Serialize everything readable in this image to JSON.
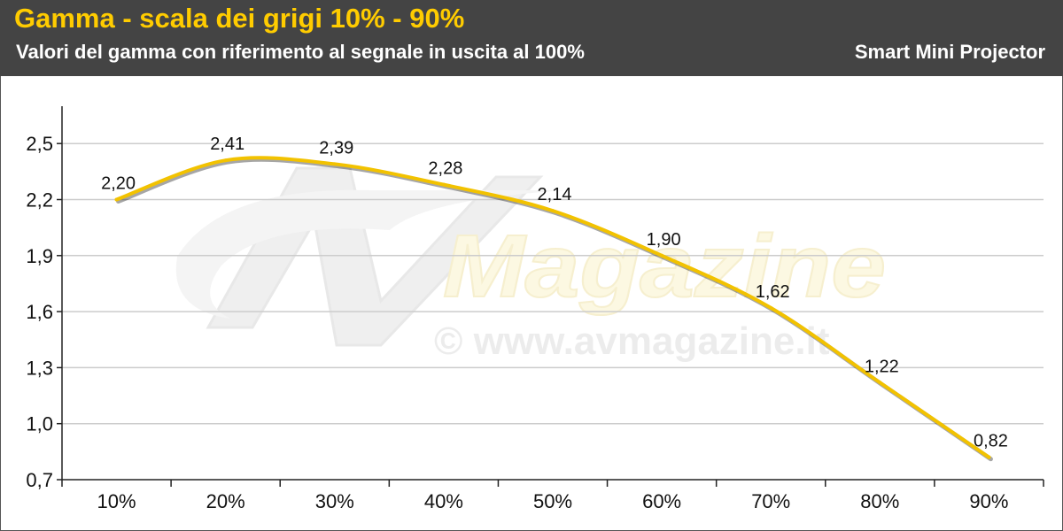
{
  "header": {
    "title": "Gamma - scala dei grigi 10% - 90%",
    "subtitle": "Valori del gamma con riferimento al segnale in uscita al 100%",
    "product": "Smart Mini Projector"
  },
  "watermark": {
    "logo_text": "Magazine",
    "url_text": "© www.avmagazine.it"
  },
  "colors": {
    "title": "#ffcc00",
    "line": "#f2c200",
    "background_header": "#444444",
    "grid": "#cccccc"
  },
  "chart_data": {
    "type": "line",
    "categories": [
      "10%",
      "20%",
      "30%",
      "40%",
      "50%",
      "60%",
      "70%",
      "80%",
      "90%"
    ],
    "series": [
      {
        "values": [
          2.2,
          2.41,
          2.39,
          2.28,
          2.14,
          1.9,
          1.62,
          1.22,
          0.82
        ],
        "labels": [
          "2,20",
          "2,41",
          "2,39",
          "2,28",
          "2,14",
          "1,90",
          "1,62",
          "1,22",
          "0,82"
        ]
      }
    ],
    "yticks": [
      0.7,
      1.0,
      1.3,
      1.6,
      1.9,
      2.2,
      2.5
    ],
    "ytick_labels": [
      "0,7",
      "1,0",
      "1,3",
      "1,6",
      "1,9",
      "2,2",
      "2,5"
    ],
    "ylim": [
      0.7,
      2.7
    ],
    "xlabel": "",
    "ylabel": "",
    "grid": true,
    "smooth": true
  }
}
